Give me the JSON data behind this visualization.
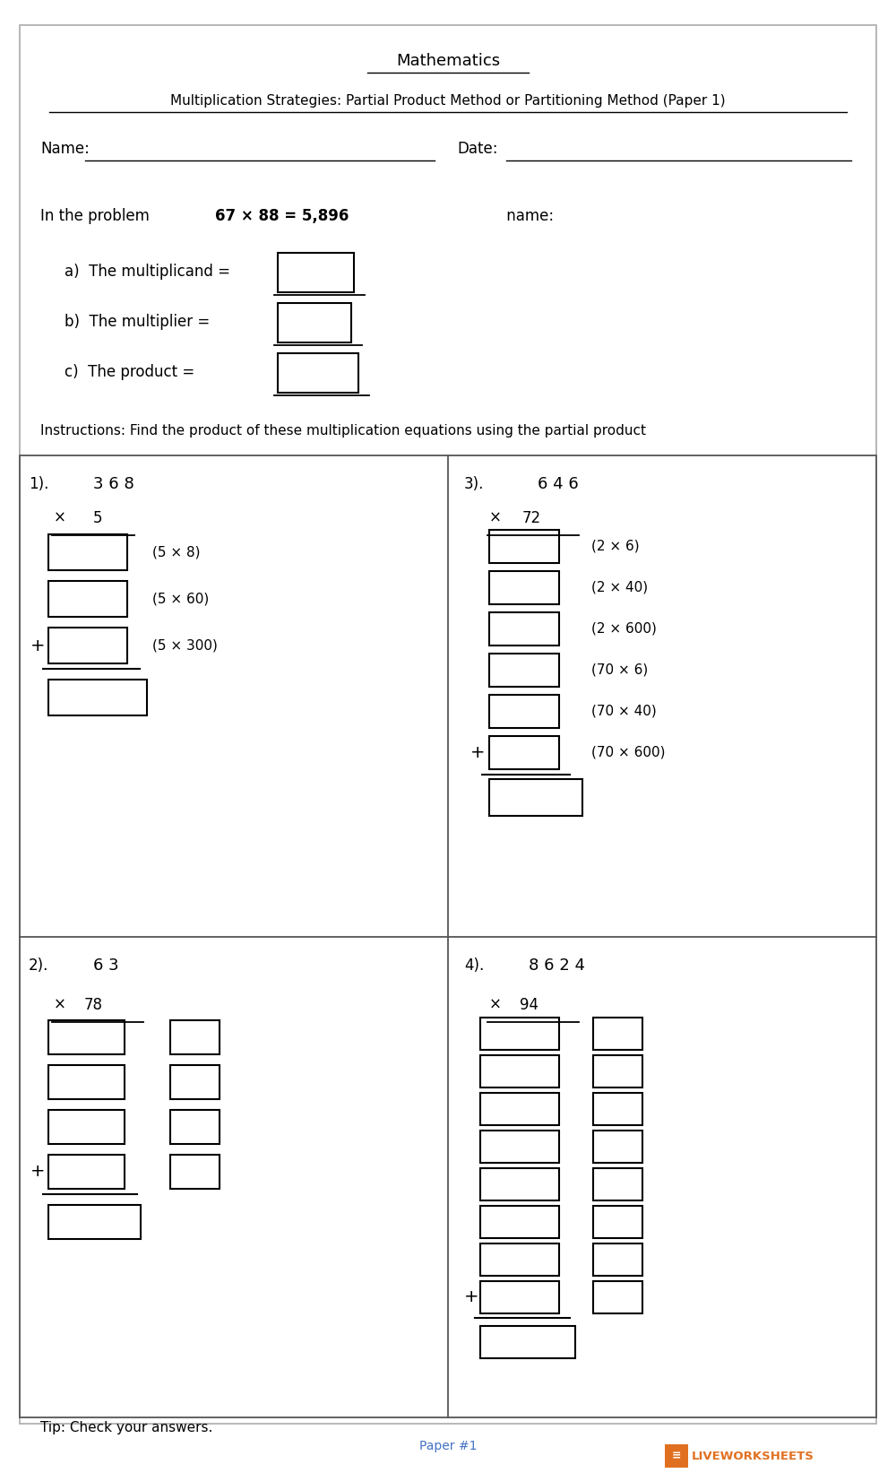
{
  "title1": "Mathematics",
  "title2": "Multiplication Strategies: Partial Product Method or Partitioning Method (Paper 1)",
  "name_label": "Name:",
  "date_label": "Date:",
  "parts": [
    "a)  The multiplicand =",
    "b)  The multiplier =",
    "c)  The product ="
  ],
  "instructions": "Instructions: Find the product of these multiplication equations using the partial product",
  "q1_number": "3 6 8",
  "q2_number": "6 3",
  "q3_number": "6 4 6",
  "q4_number": "8 6 2 4",
  "q1_labels": [
    "(5 × 8)",
    "(5 × 60)",
    "(5 × 300)"
  ],
  "q3_labels": [
    "(2 × 6)",
    "(2 × 40)",
    "(2 × 600)",
    "(70 × 6)",
    "(70 × 40)",
    "(70 × 600)"
  ],
  "tip": "Tip: Check your answers.",
  "paper": "Paper #1",
  "logo_text": "LIVEWORKSHEETS",
  "bg_color": "#ffffff",
  "box_color": "#000000",
  "text_color": "#000000",
  "blue_color": "#4472c4",
  "orange_color": "#e07020",
  "grid_color": "#555555",
  "line_color": "#000000"
}
